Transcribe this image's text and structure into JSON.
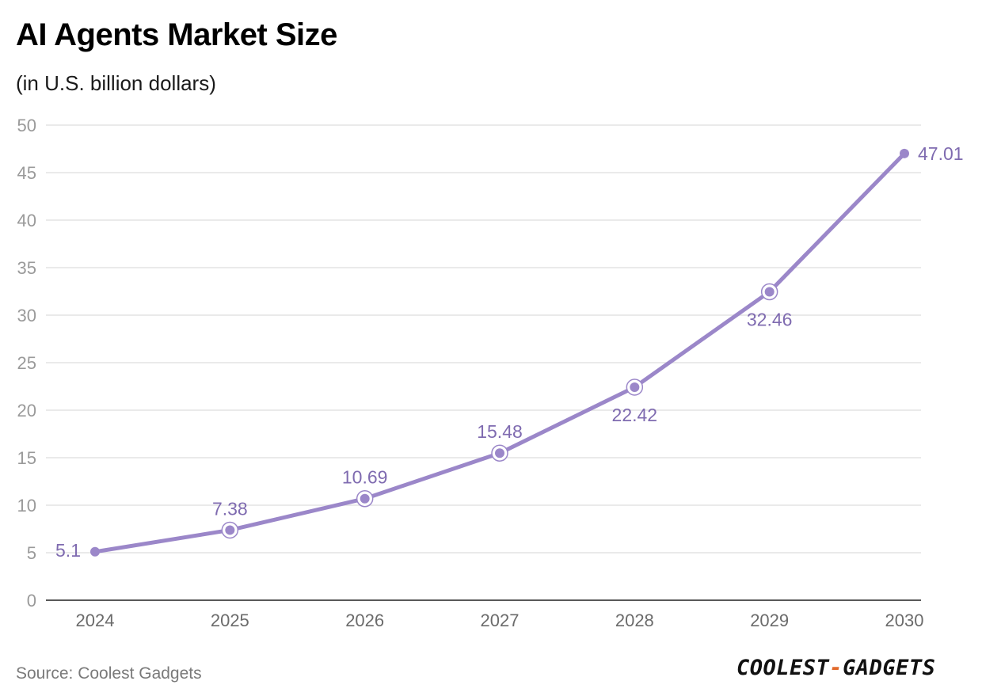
{
  "chart_data": {
    "type": "line",
    "title": "AI Agents Market Size",
    "subtitle": "(in U.S. billion dollars)",
    "categories": [
      "2024",
      "2025",
      "2026",
      "2027",
      "2028",
      "2029",
      "2030"
    ],
    "series": [
      {
        "name": "AI Agents Market Size",
        "values": [
          5.1,
          7.38,
          10.69,
          15.48,
          22.42,
          32.46,
          47.01
        ],
        "data_labels": [
          "5.1",
          "7.38",
          "10.69",
          "15.48",
          "22.42",
          "32.46",
          "47.01"
        ]
      }
    ],
    "ylim": [
      0,
      50
    ],
    "yticks": [
      "0",
      "5",
      "10",
      "15",
      "20",
      "25",
      "30",
      "35",
      "40",
      "45",
      "50"
    ],
    "xlabel": "",
    "ylabel": "",
    "grid": true,
    "line_color": "#9b87c9",
    "label_color": "#7f6bb0"
  },
  "footer": {
    "source": "Source: Coolest Gadgets",
    "brand_left": "COOLEST",
    "brand_dash": "-",
    "brand_right": "GADGETS"
  }
}
